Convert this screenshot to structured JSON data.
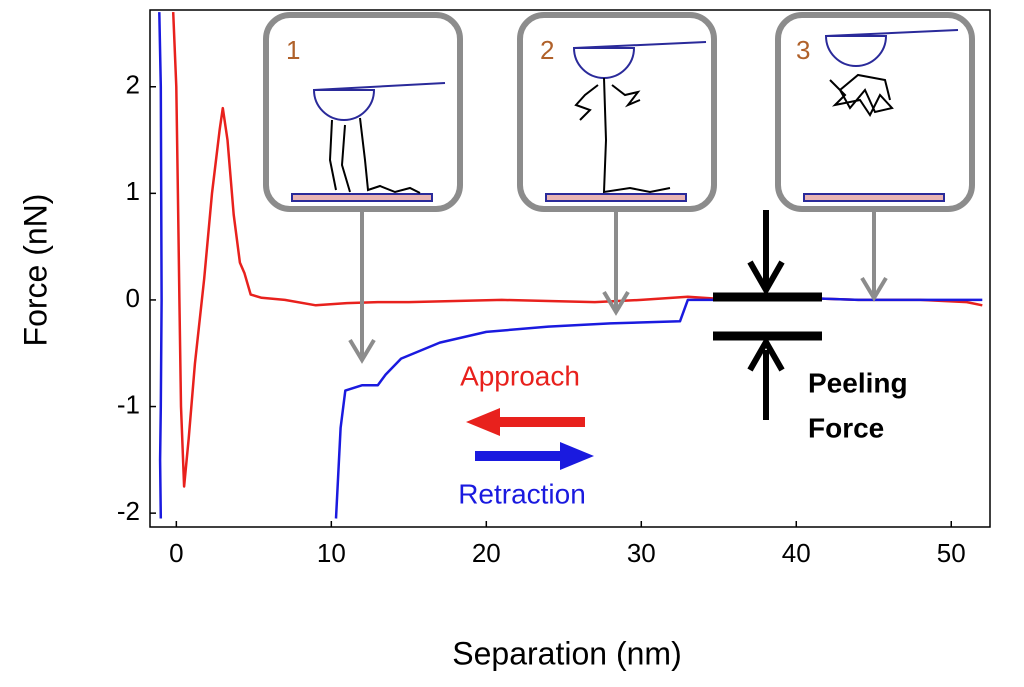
{
  "chart_data": {
    "type": "line",
    "xlabel": "Separation (nm)",
    "ylabel": "Force (nN)",
    "xlim": [
      -1.7,
      52.5
    ],
    "ylim": [
      -2.13,
      2.72
    ],
    "xticks": [
      0,
      10,
      20,
      30,
      40,
      50
    ],
    "yticks": [
      -2,
      -1,
      0,
      1,
      2
    ],
    "series": [
      {
        "name": "Approach",
        "color": "#e8211d",
        "x": [
          -0.2,
          0.0,
          0.1,
          0.2,
          0.3,
          0.5,
          0.8,
          1.2,
          1.8,
          2.3,
          2.8,
          3.0,
          3.3,
          3.7,
          4.1,
          4.4,
          4.8,
          5.5,
          7,
          9,
          11,
          13,
          15,
          18,
          21,
          24,
          27,
          30,
          33,
          36,
          40,
          44,
          48,
          51,
          52
        ],
        "values": [
          2.7,
          2.0,
          1.0,
          0.0,
          -1.0,
          -1.75,
          -1.3,
          -0.6,
          0.2,
          1.0,
          1.6,
          1.8,
          1.5,
          0.8,
          0.35,
          0.25,
          0.05,
          0.02,
          0.0,
          -0.05,
          -0.03,
          -0.02,
          -0.02,
          -0.01,
          0.0,
          -0.01,
          -0.02,
          0.0,
          0.03,
          0.0,
          0.02,
          0.0,
          0.0,
          -0.02,
          -0.05
        ]
      },
      {
        "name": "Retraction",
        "color": "#1a1adf",
        "x": [
          -1.1,
          -1.0,
          -0.95,
          -1.0,
          -1.05,
          -1.0,
          null,
          10.3,
          10.6,
          10.9,
          12,
          13,
          13.5,
          14.5,
          17,
          20,
          24,
          28,
          32.5,
          33,
          36,
          40,
          44,
          48,
          52
        ],
        "values": [
          2.7,
          2.0,
          0.0,
          -1.0,
          -1.5,
          -2.05,
          null,
          -2.05,
          -1.2,
          -0.85,
          -0.8,
          -0.8,
          -0.7,
          -0.55,
          -0.4,
          -0.3,
          -0.25,
          -0.22,
          -0.2,
          0.0,
          0.0,
          0.02,
          0.0,
          0.0,
          0.0
        ]
      }
    ],
    "annotations": {
      "inset_1": "1",
      "inset_2": "2",
      "inset_3": "3",
      "peeling": "Peeling",
      "force": "Force"
    }
  }
}
